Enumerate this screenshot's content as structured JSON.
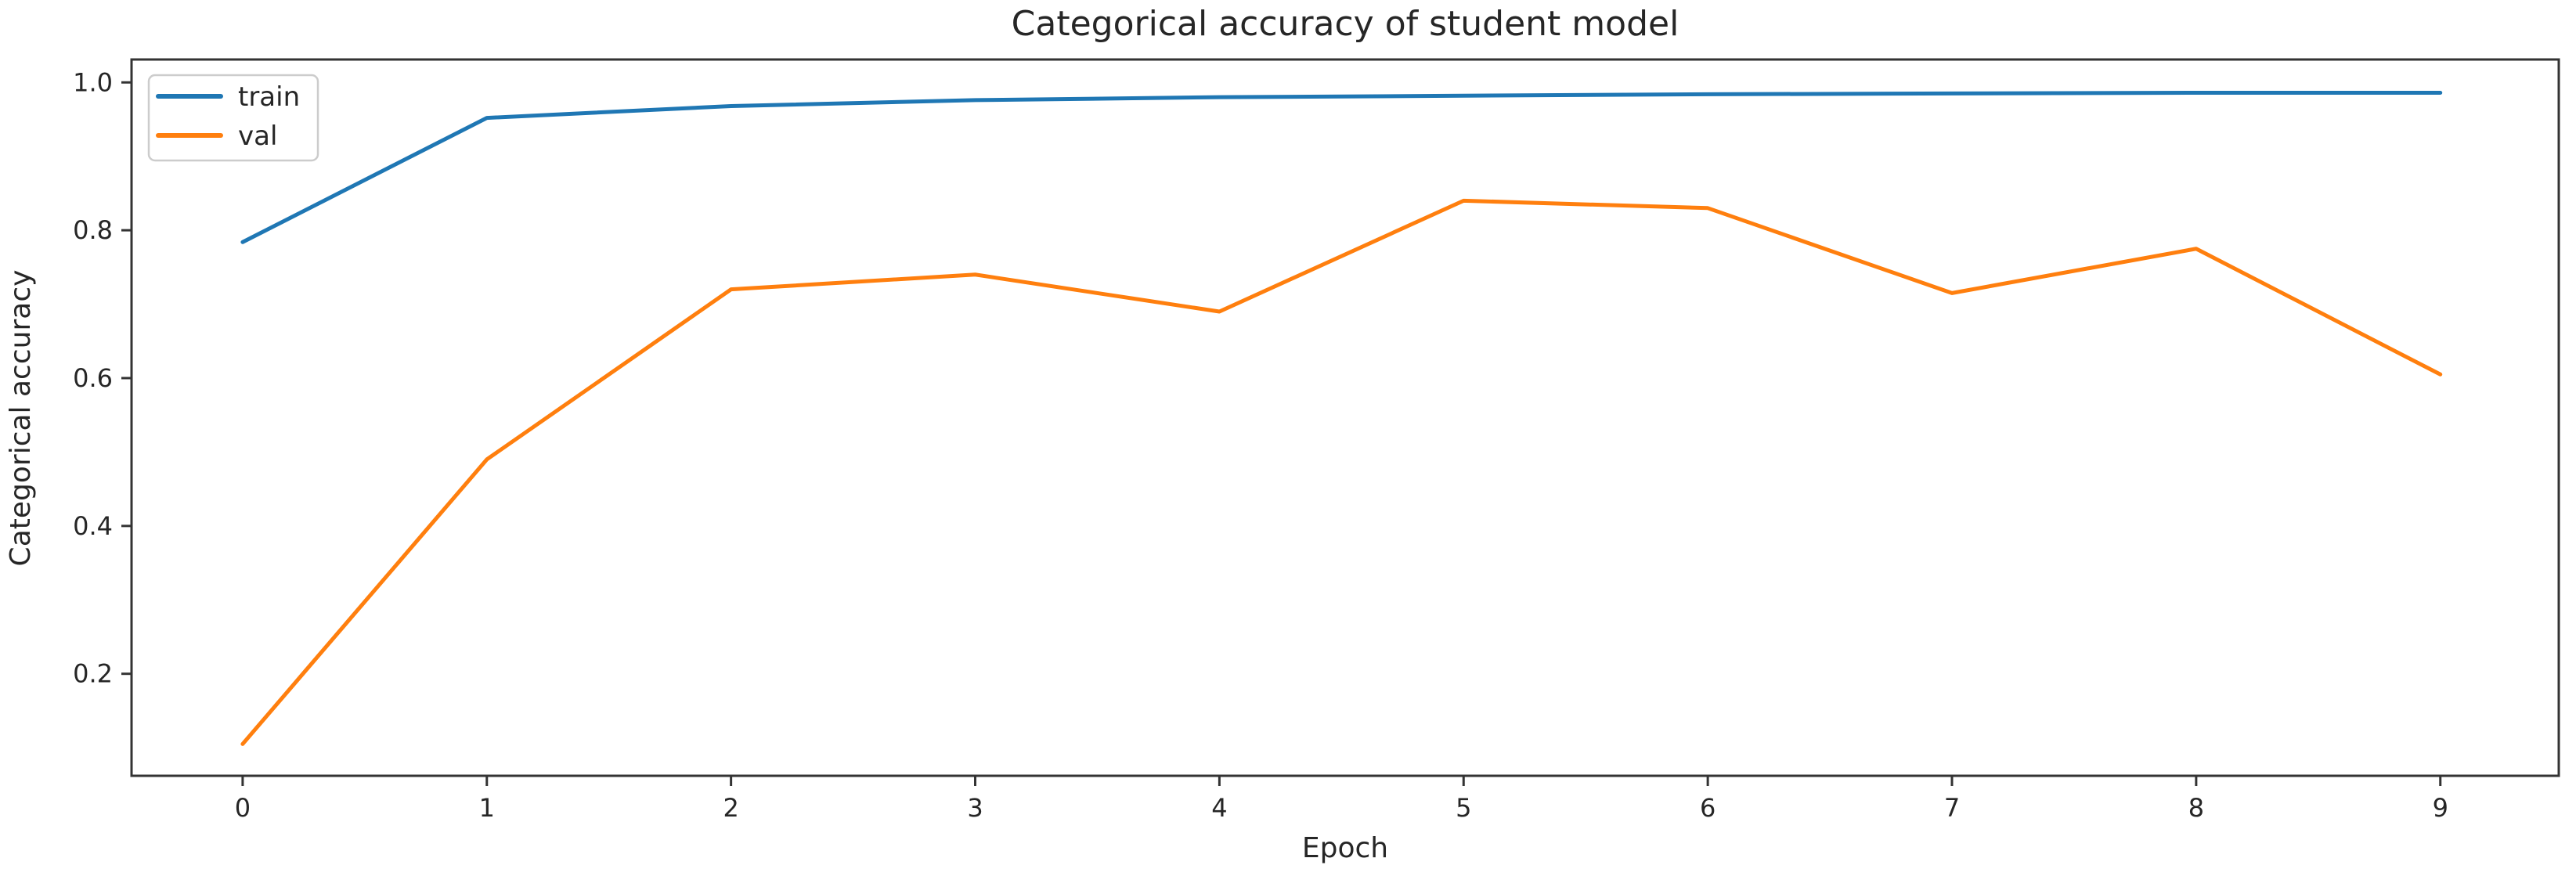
{
  "chart_data": {
    "type": "line",
    "title": "Categorical accuracy of student model",
    "xlabel": "Epoch",
    "ylabel": "Categorical accuracy",
    "x": [
      0,
      1,
      2,
      3,
      4,
      5,
      6,
      7,
      8,
      9
    ],
    "series": [
      {
        "name": "train",
        "color": "#1f77b4",
        "values": [
          0.784,
          0.952,
          0.968,
          0.976,
          0.98,
          0.982,
          0.984,
          0.985,
          0.986,
          0.986
        ]
      },
      {
        "name": "val",
        "color": "#ff7f0e",
        "values": [
          0.105,
          0.49,
          0.72,
          0.74,
          0.69,
          0.84,
          0.83,
          0.715,
          0.775,
          0.605
        ]
      }
    ],
    "xtick_labels": [
      "0",
      "1",
      "2",
      "3",
      "4",
      "5",
      "6",
      "7",
      "8",
      "9"
    ],
    "xticks": [
      0,
      1,
      2,
      3,
      4,
      5,
      6,
      7,
      8,
      9
    ],
    "ytick_labels": [
      "0.2",
      "0.4",
      "0.6",
      "0.8",
      "1.0"
    ],
    "yticks": [
      0.2,
      0.4,
      0.6,
      0.8,
      1.0
    ],
    "xlim": [
      -0.455,
      9.485
    ],
    "ylim": [
      0.062,
      1.031
    ],
    "grid": false,
    "legend_position": "upper left"
  },
  "colors": {
    "background": "#ffffff",
    "text": "#262626",
    "spine": "#333333",
    "legend_border": "#cccccc"
  }
}
